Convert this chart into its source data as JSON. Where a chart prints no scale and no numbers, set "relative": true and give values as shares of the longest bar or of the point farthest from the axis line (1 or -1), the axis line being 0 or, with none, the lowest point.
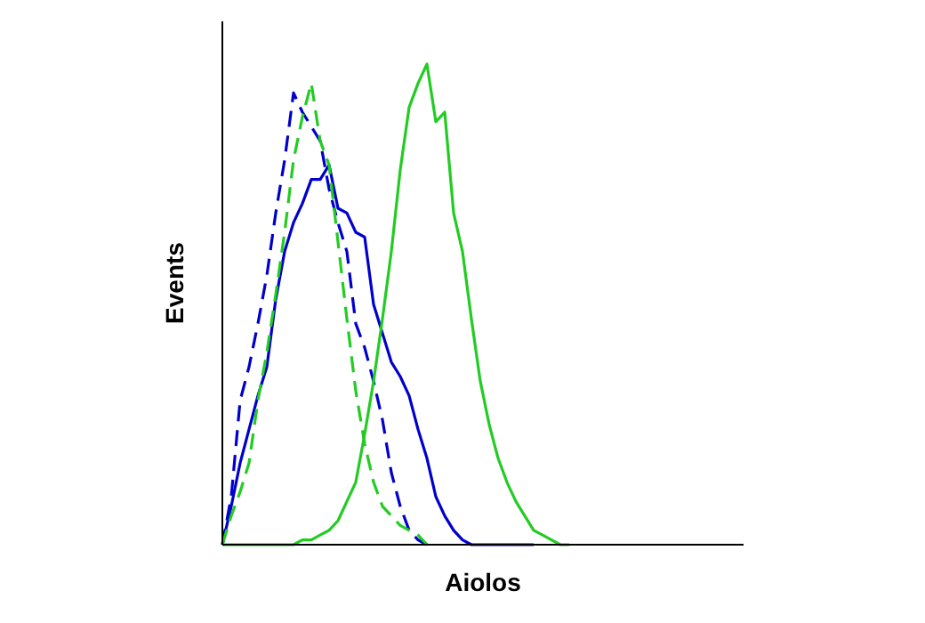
{
  "chart_data": {
    "type": "line",
    "relative": true,
    "xlabel": "Aiolos",
    "ylabel": "Events",
    "categories": [
      null,
      null,
      null,
      null,
      null,
      null,
      null,
      null,
      null,
      null,
      null,
      null,
      null,
      null,
      null,
      null,
      null,
      null,
      null,
      null,
      null,
      null,
      null,
      null,
      null,
      null,
      null,
      null,
      null,
      null,
      null,
      null,
      null,
      null,
      null,
      null,
      null,
      null,
      null,
      null,
      null,
      null,
      null,
      null,
      null,
      null,
      null,
      null,
      null,
      null,
      null,
      null,
      null,
      null,
      null,
      null,
      null,
      null,
      null
    ],
    "series": [
      {
        "color": "#0000cc",
        "line_style": "solid",
        "values": [
          0,
          0.08,
          0.17,
          0.24,
          0.31,
          0.37,
          0.51,
          0.61,
          0.67,
          0.71,
          0.76,
          0.76,
          0.79,
          0.7,
          0.69,
          0.65,
          0.64,
          0.5,
          0.44,
          0.38,
          0.35,
          0.31,
          0.24,
          0.18,
          0.1,
          0.06,
          0.03,
          0.01,
          0,
          0,
          0,
          0,
          0,
          0,
          0,
          0,
          null,
          null,
          null,
          null,
          null,
          null,
          null,
          null,
          null,
          null,
          null,
          null,
          null,
          null,
          null,
          null,
          null,
          null,
          null,
          null,
          null,
          null,
          null
        ]
      },
      {
        "color": "#0000cc",
        "line_style": "dashed",
        "values": [
          0,
          0.1,
          0.3,
          0.37,
          0.46,
          0.56,
          0.69,
          0.8,
          0.94,
          0.9,
          0.87,
          0.84,
          0.74,
          0.67,
          0.61,
          0.46,
          0.41,
          0.34,
          0.26,
          0.15,
          0.08,
          0.03,
          0.01,
          0,
          null,
          null,
          null,
          null,
          null,
          null,
          null,
          null,
          null,
          null,
          null,
          null,
          null,
          null,
          null,
          null,
          null,
          null,
          null,
          null,
          null,
          null,
          null,
          null,
          null,
          null,
          null,
          null,
          null,
          null,
          null,
          null,
          null,
          null,
          null
        ]
      },
      {
        "color": "#22cc22",
        "line_style": "dashed",
        "values": [
          0,
          0.06,
          0.11,
          0.17,
          0.3,
          0.4,
          0.52,
          0.65,
          0.8,
          0.89,
          0.96,
          0.84,
          0.79,
          0.63,
          0.47,
          0.32,
          0.21,
          0.13,
          0.08,
          0.06,
          0.04,
          0.03,
          0.02,
          0,
          null,
          null,
          null,
          null,
          null,
          null,
          null,
          null,
          null,
          null,
          null,
          null,
          null,
          null,
          null,
          null,
          null,
          null,
          null,
          null,
          null,
          null,
          null,
          null,
          null,
          null,
          null,
          null,
          null,
          null,
          null,
          null,
          null,
          null,
          null
        ]
      },
      {
        "color": "#22cc22",
        "line_style": "solid",
        "values": [
          0,
          0,
          0,
          0,
          0,
          0,
          0,
          0,
          0,
          0.01,
          0.01,
          0.02,
          0.03,
          0.05,
          0.09,
          0.13,
          0.23,
          0.34,
          0.47,
          0.61,
          0.78,
          0.91,
          0.96,
          1,
          0.88,
          0.9,
          0.69,
          0.61,
          0.47,
          0.34,
          0.25,
          0.18,
          0.13,
          0.09,
          0.06,
          0.03,
          0.02,
          0.01,
          0,
          0,
          null,
          null,
          null,
          null,
          null,
          null,
          null,
          null,
          null,
          null,
          null,
          null,
          null,
          null,
          null,
          null,
          null,
          null,
          null
        ]
      }
    ]
  }
}
